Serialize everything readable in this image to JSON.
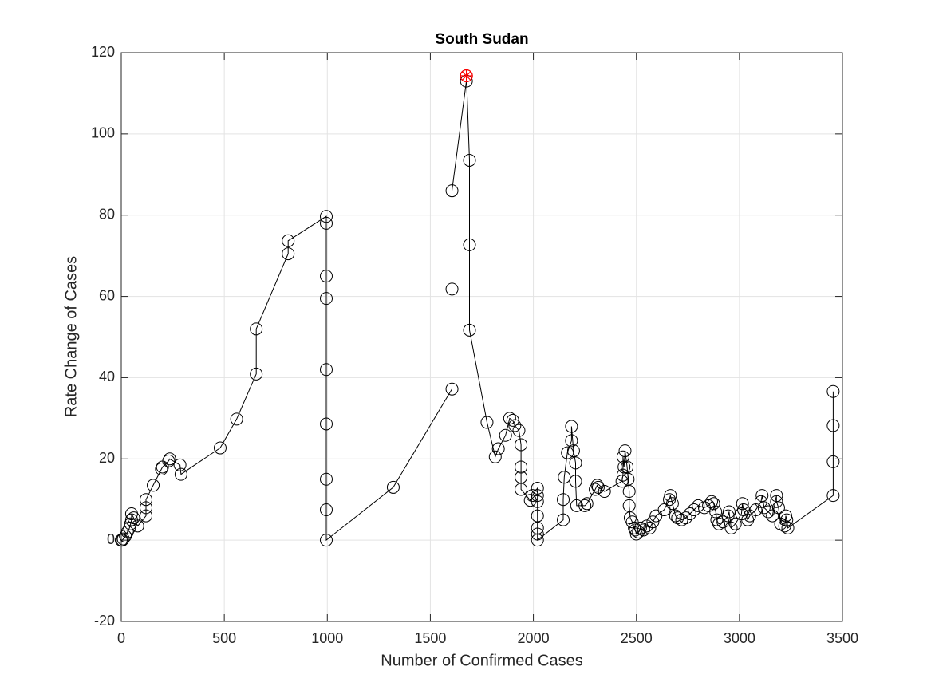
{
  "chart_data": {
    "type": "line",
    "title": "South Sudan",
    "xlabel": "Number of Confirmed Cases",
    "ylabel": "Rate Change of Cases",
    "xlim": [
      0,
      3500
    ],
    "ylim": [
      -20,
      120
    ],
    "xticks": [
      0,
      500,
      1000,
      1500,
      2000,
      2500,
      3000,
      3500
    ],
    "yticks": [
      -20,
      0,
      20,
      40,
      60,
      80,
      100,
      120
    ],
    "grid": true,
    "color": "#000000",
    "marker": "circle",
    "x": [
      0,
      5,
      10,
      20,
      30,
      40,
      45,
      50,
      50,
      60,
      80,
      120,
      120,
      120,
      155,
      195,
      200,
      230,
      235,
      285,
      290,
      480,
      560,
      655,
      655,
      810,
      810,
      995,
      995,
      995,
      995,
      995,
      995,
      995,
      995,
      995,
      1320,
      1605,
      1605,
      1605,
      1675,
      1675,
      1690,
      1690,
      1690,
      1775,
      1815,
      1830,
      1865,
      1885,
      1900,
      1910,
      1930,
      1940,
      1940,
      1940,
      1940,
      1985,
      1995,
      2020,
      2020,
      2020,
      2020,
      2020,
      2020,
      2020,
      2145,
      2145,
      2150,
      2165,
      2185,
      2185,
      2195,
      2205,
      2205,
      2210,
      2250,
      2260,
      2300,
      2310,
      2315,
      2345,
      2430,
      2435,
      2435,
      2440,
      2445,
      2455,
      2460,
      2465,
      2465,
      2470,
      2480,
      2490,
      2495,
      2500,
      2510,
      2520,
      2535,
      2550,
      2565,
      2580,
      2595,
      2635,
      2660,
      2665,
      2675,
      2690,
      2700,
      2720,
      2740,
      2760,
      2780,
      2800,
      2830,
      2850,
      2865,
      2875,
      2885,
      2890,
      2900,
      2920,
      2945,
      2950,
      2960,
      2980,
      3010,
      3015,
      3020,
      3040,
      3050,
      3080,
      3105,
      3110,
      3120,
      3140,
      3160,
      3180,
      3180,
      3190,
      3200,
      3220,
      3225,
      3230,
      3235,
      3455,
      3455,
      3455,
      3455
    ],
    "values": [
      0,
      0,
      0.3,
      1,
      2,
      3,
      4,
      5,
      6.5,
      5.5,
      3.5,
      6,
      8,
      10,
      13.5,
      17.5,
      18,
      19.5,
      20,
      18.5,
      16.2,
      22.7,
      29.8,
      40.9,
      52,
      70.5,
      73.7,
      79.7,
      78,
      65,
      59.5,
      42,
      28.6,
      15,
      7.5,
      0,
      13,
      37.2,
      61.8,
      86,
      113,
      114.3,
      93.5,
      72.7,
      51.7,
      29,
      20.5,
      22.5,
      25.8,
      30,
      29.5,
      28.2,
      27,
      23.5,
      18,
      15.5,
      12.5,
      9.8,
      11,
      12.8,
      11,
      9.5,
      6,
      3,
      1.5,
      0,
      5,
      10,
      15.5,
      21.5,
      24.5,
      28,
      22,
      19,
      14.5,
      8.5,
      8.5,
      9,
      12.5,
      13.5,
      13,
      12,
      14.5,
      16,
      20.5,
      18,
      22,
      18,
      15,
      12,
      8.5,
      5.5,
      4.5,
      3,
      2.5,
      1.5,
      2,
      3,
      2.5,
      3.5,
      3,
      4.5,
      6,
      7.5,
      10,
      11,
      9,
      6,
      5.5,
      5,
      5.5,
      6.5,
      7.5,
      8.5,
      8,
      8.5,
      9.5,
      9,
      7,
      5,
      4,
      4.5,
      6,
      7,
      3,
      4,
      6.5,
      9,
      7.5,
      5,
      6,
      7.5,
      9.5,
      11,
      8,
      7,
      6,
      11,
      9.5,
      8,
      4,
      3.5,
      6,
      5,
      3,
      11,
      19.3,
      28.2,
      36.6
    ],
    "highlight": {
      "x": 1675,
      "y": 114.3,
      "color": "#ff0000"
    }
  }
}
